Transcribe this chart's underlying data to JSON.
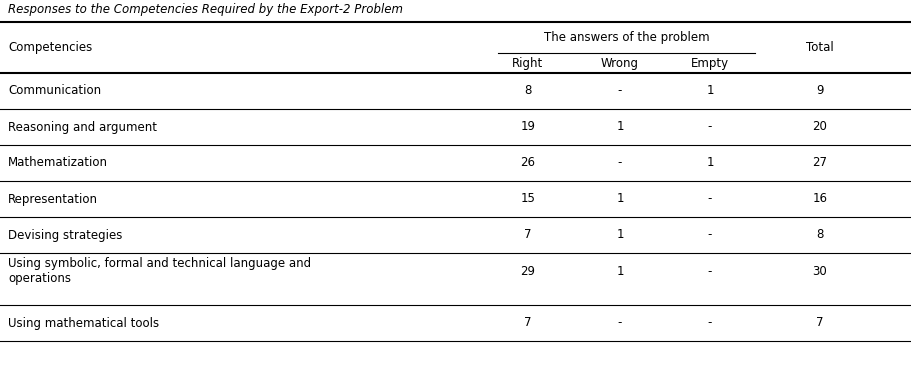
{
  "title": "Responses to the Competencies Required by the Export-2 Problem",
  "col_header_main": "Competencies",
  "col_group_header": "The answers of the problem",
  "col_sub_headers": [
    "Right",
    "Wrong",
    "Empty"
  ],
  "col_total": "Total",
  "rows": [
    {
      "competency": "Communication",
      "right": "8",
      "wrong": "-",
      "empty": "1",
      "total": "9"
    },
    {
      "competency": "Reasoning and argument",
      "right": "19",
      "wrong": "1",
      "empty": "-",
      "total": "20"
    },
    {
      "competency": "Mathematization",
      "right": "26",
      "wrong": "-",
      "empty": "1",
      "total": "27"
    },
    {
      "competency": "Representation",
      "right": "15",
      "wrong": "1",
      "empty": "-",
      "total": "16"
    },
    {
      "competency": "Devising strategies",
      "right": "7",
      "wrong": "1",
      "empty": "-",
      "total": "8"
    },
    {
      "competency": "Using symbolic, formal and technical language and\noperations",
      "right": "29",
      "wrong": "1",
      "empty": "-",
      "total": "30"
    },
    {
      "competency": "Using mathematical tools",
      "right": "7",
      "wrong": "-",
      "empty": "-",
      "total": "7"
    }
  ],
  "font_family": "DejaVu Sans",
  "title_fontsize": 8.5,
  "header_fontsize": 8.5,
  "cell_fontsize": 8.5,
  "bg_color": "#ffffff"
}
